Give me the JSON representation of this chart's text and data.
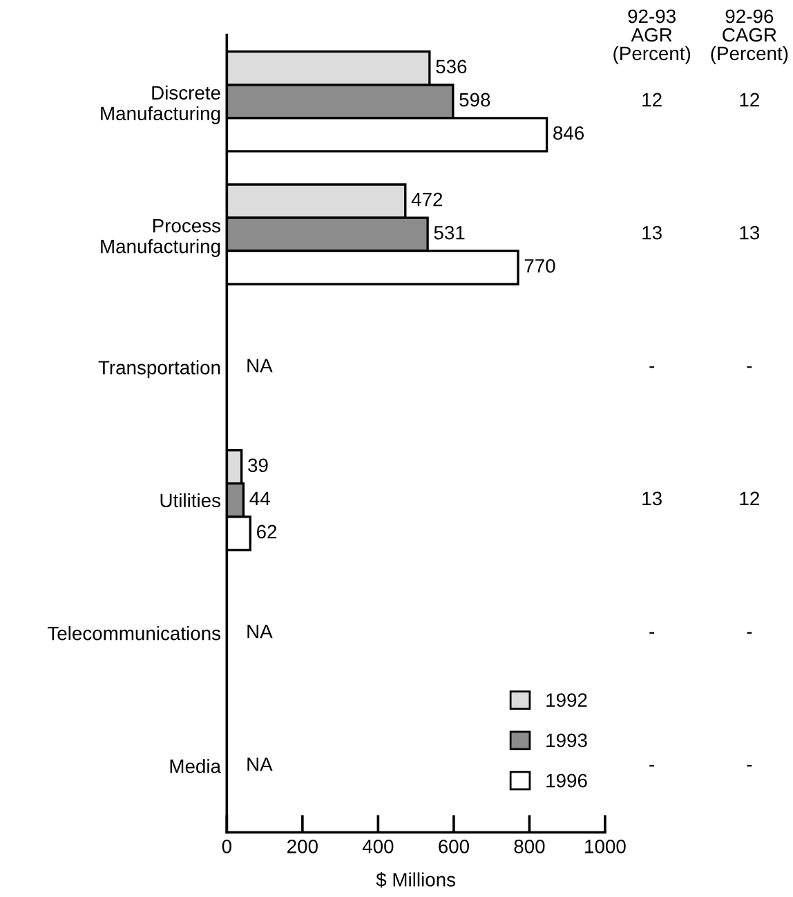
{
  "chart_data": {
    "type": "bar",
    "orientation": "horizontal",
    "xlabel": "$ Millions",
    "categories": [
      "Discrete\nManufacturing",
      "Process\nManufacturing",
      "Transportation",
      "Utilities",
      "Telecommunications",
      "Media"
    ],
    "series": [
      {
        "name": "1992",
        "color": "#dcdcdc",
        "values": [
          536,
          472,
          null,
          39,
          null,
          null
        ],
        "value_labels": [
          "536",
          "472",
          null,
          "39",
          null,
          null
        ]
      },
      {
        "name": "1993",
        "color": "#8c8c8c",
        "values": [
          598,
          531,
          null,
          44,
          null,
          null
        ],
        "value_labels": [
          "598",
          "531",
          "NA",
          "44",
          "NA",
          "NA"
        ]
      },
      {
        "name": "1996",
        "color": "#ffffff",
        "values": [
          846,
          770,
          null,
          62,
          null,
          null
        ],
        "value_labels": [
          "846",
          "770",
          null,
          "62",
          null,
          null
        ]
      }
    ],
    "xlim": [
      0,
      1000
    ],
    "xticks": [
      0,
      200,
      400,
      600,
      800,
      1000
    ],
    "grid": false,
    "legend": "bottom right",
    "annotations": [
      "92-93\nAGR\n(Percent)",
      "92-96\nCAGR\n(Percent)",
      "12",
      "12",
      "13",
      "13",
      "-",
      "-",
      "13",
      "12",
      "-",
      "-",
      "-",
      "-"
    ]
  }
}
